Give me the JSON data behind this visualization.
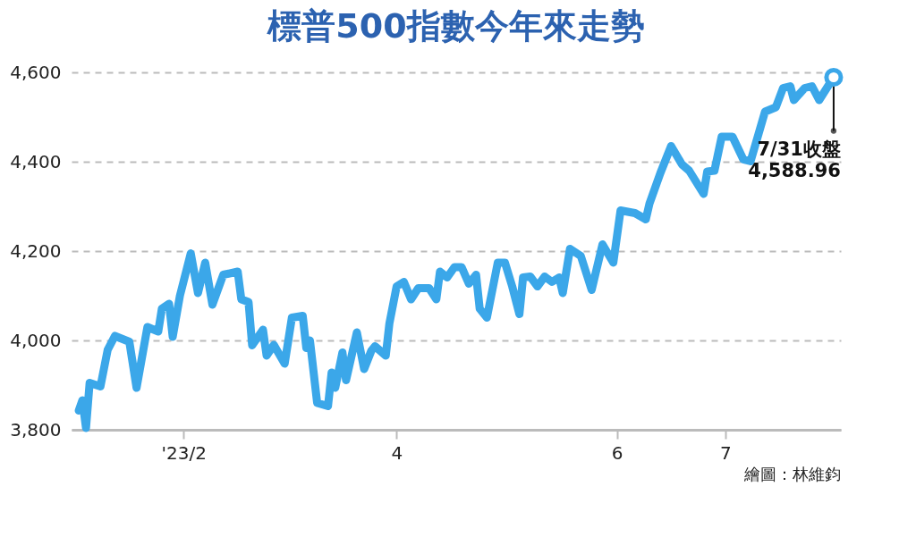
{
  "chart_data": {
    "type": "line",
    "title": "標普500指數今年來走勢",
    "x": [
      "2023-01-03",
      "2023-01-04",
      "2023-01-05",
      "2023-01-06",
      "2023-01-09",
      "2023-01-11",
      "2023-01-13",
      "2023-01-17",
      "2023-01-19",
      "2023-01-22",
      "2023-01-25",
      "2023-01-26",
      "2023-01-28",
      "2023-01-29",
      "2023-01-31",
      "2023-02-03",
      "2023-02-05",
      "2023-02-07",
      "2023-02-09",
      "2023-02-12",
      "2023-02-16",
      "2023-02-17",
      "2023-02-19",
      "2023-02-20",
      "2023-02-23",
      "2023-02-24",
      "2023-02-26",
      "2023-03-01",
      "2023-03-03",
      "2023-03-06",
      "2023-03-07",
      "2023-03-08",
      "2023-03-10",
      "2023-03-13",
      "2023-03-14",
      "2023-03-15",
      "2023-03-17",
      "2023-03-18",
      "2023-03-21",
      "2023-03-23",
      "2023-03-25",
      "2023-03-26",
      "2023-03-29",
      "2023-03-30",
      "2023-04-01",
      "2023-04-03",
      "2023-04-05",
      "2023-04-07",
      "2023-04-10",
      "2023-04-12",
      "2023-04-13",
      "2023-04-15",
      "2023-04-17",
      "2023-04-19",
      "2023-04-21",
      "2023-04-23",
      "2023-04-24",
      "2023-04-26",
      "2023-04-29",
      "2023-05-01",
      "2023-05-03",
      "2023-05-05",
      "2023-05-06",
      "2023-05-08",
      "2023-05-10",
      "2023-05-12",
      "2023-05-14",
      "2023-05-16",
      "2023-05-17",
      "2023-05-19",
      "2023-05-22",
      "2023-05-25",
      "2023-05-28",
      "2023-05-31",
      "2023-06-02",
      "2023-06-06",
      "2023-06-09",
      "2023-06-10",
      "2023-06-13",
      "2023-06-16",
      "2023-06-19",
      "2023-06-21",
      "2023-06-25",
      "2023-06-26",
      "2023-06-28",
      "2023-06-30",
      "2023-07-03",
      "2023-07-06",
      "2023-07-08",
      "2023-07-12",
      "2023-07-15",
      "2023-07-17",
      "2023-07-19",
      "2023-07-20",
      "2023-07-23",
      "2023-07-25",
      "2023-07-27",
      "2023-07-31"
    ],
    "series": [
      {
        "color": "#3ba7e9",
        "values": [
          3843,
          3866,
          3804,
          3905,
          3897,
          3979,
          4010,
          3997,
          3894,
          4030,
          4020,
          4071,
          4082,
          4008,
          4100,
          4195,
          4106,
          4174,
          4080,
          4147,
          4154,
          4092,
          4086,
          3989,
          4024,
          3966,
          3990,
          3948,
          4051,
          4055,
          3983,
          4000,
          3860,
          3853,
          3928,
          3894,
          3973,
          3911,
          4018,
          3936,
          3977,
          3987,
          3966,
          4038,
          4121,
          4131,
          4092,
          4117,
          4117,
          4092,
          4154,
          4141,
          4164,
          4164,
          4127,
          4147,
          4071,
          4051,
          4174,
          4174,
          4121,
          4059,
          4141,
          4143,
          4121,
          4143,
          4131,
          4141,
          4106,
          4205,
          4189,
          4113,
          4215,
          4174,
          4291,
          4285,
          4271,
          4306,
          4374,
          4435,
          4394,
          4380,
          4328,
          4378,
          4380,
          4456,
          4456,
          4405,
          4401,
          4512,
          4522,
          4565,
          4569,
          4538,
          4565,
          4569,
          4538,
          4588.96
        ]
      }
    ],
    "xlim": [
      "2023-01-01",
      "2023-08-02"
    ],
    "xticks": [
      {
        "value": "2023-02-01",
        "label": "'23/2"
      },
      {
        "value": "2023-04-01",
        "label": "4"
      },
      {
        "value": "2023-06-01",
        "label": "6"
      },
      {
        "value": "2023-07-01",
        "label": "7"
      }
    ],
    "ylim": [
      3800,
      4600
    ],
    "yticks": [
      {
        "value": 3800,
        "label": "3,800"
      },
      {
        "value": 4000,
        "label": "4,000"
      },
      {
        "value": 4200,
        "label": "4,200"
      },
      {
        "value": 4400,
        "label": "4,400"
      },
      {
        "value": 4600,
        "label": "4,600"
      }
    ],
    "grid": "y",
    "line_style": "solid",
    "annotations": [
      {
        "text": "7/31收盤\n4,588.96",
        "x": "2023-07-31",
        "y": 4588.96
      },
      "繪圖：林維鈞"
    ]
  }
}
